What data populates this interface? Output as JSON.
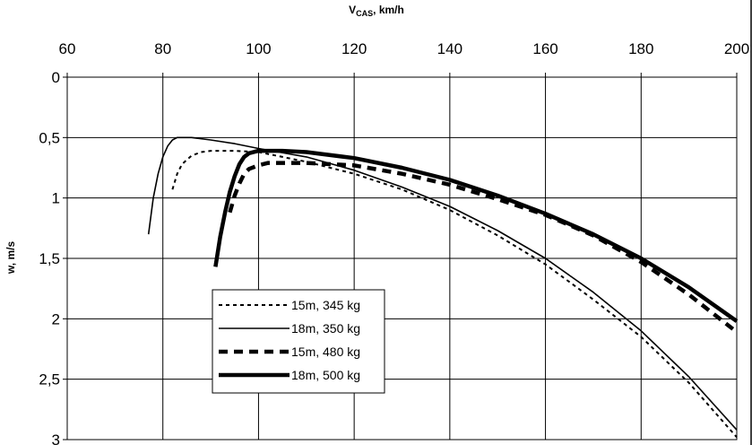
{
  "chart_data": {
    "type": "line",
    "xlabel": "V",
    "xlabel_sub": "CAS",
    "xlabel_unit": ", km/h",
    "ylabel": "w, m/s",
    "xlim": [
      60,
      200
    ],
    "ylim": [
      0,
      3
    ],
    "y_inverted": true,
    "x_axis_position": "top",
    "grid": true,
    "legend_placement": "lower-left",
    "x_ticks": [
      "60",
      "80",
      "100",
      "120",
      "140",
      "160",
      "180",
      "200"
    ],
    "y_ticks": [
      "0",
      "0,5",
      "1",
      "1,5",
      "2",
      "2,5",
      "3"
    ],
    "series": [
      {
        "name": "15m, 345 kg",
        "style": "dotted",
        "x": [
          82,
          83,
          84,
          86,
          88,
          90,
          92,
          95,
          100,
          110,
          120,
          130,
          140,
          150,
          160,
          170,
          180,
          190,
          200
        ],
        "y": [
          0.93,
          0.8,
          0.72,
          0.65,
          0.62,
          0.61,
          0.61,
          0.61,
          0.62,
          0.7,
          0.8,
          0.93,
          1.1,
          1.31,
          1.55,
          1.84,
          2.15,
          2.53,
          2.98
        ]
      },
      {
        "name": "18m, 350 kg",
        "style": "thin",
        "x": [
          77,
          78,
          79,
          80,
          81,
          82,
          83,
          84,
          86,
          90,
          95,
          100,
          110,
          120,
          130,
          140,
          150,
          160,
          170,
          180,
          190,
          200
        ],
        "y": [
          1.3,
          1.0,
          0.8,
          0.66,
          0.57,
          0.52,
          0.5,
          0.5,
          0.5,
          0.52,
          0.55,
          0.59,
          0.66,
          0.77,
          0.91,
          1.07,
          1.27,
          1.5,
          1.78,
          2.1,
          2.48,
          2.92
        ]
      },
      {
        "name": "15m, 480 kg",
        "style": "dashed",
        "x": [
          94,
          95,
          96,
          97,
          98,
          100,
          102,
          105,
          110,
          120,
          130,
          140,
          150,
          160,
          170,
          180,
          190,
          200
        ],
        "y": [
          1.12,
          0.98,
          0.88,
          0.8,
          0.76,
          0.73,
          0.71,
          0.71,
          0.71,
          0.73,
          0.8,
          0.89,
          1.01,
          1.14,
          1.31,
          1.53,
          1.8,
          2.11
        ]
      },
      {
        "name": "18m, 500 kg",
        "style": "thick",
        "x": [
          91,
          92,
          93,
          94,
          95,
          96,
          97,
          98,
          100,
          105,
          110,
          120,
          130,
          140,
          150,
          160,
          170,
          180,
          190,
          200
        ],
        "y": [
          1.57,
          1.32,
          1.12,
          0.95,
          0.82,
          0.72,
          0.66,
          0.63,
          0.61,
          0.61,
          0.62,
          0.67,
          0.75,
          0.85,
          0.98,
          1.13,
          1.3,
          1.5,
          1.74,
          2.02
        ]
      }
    ]
  }
}
